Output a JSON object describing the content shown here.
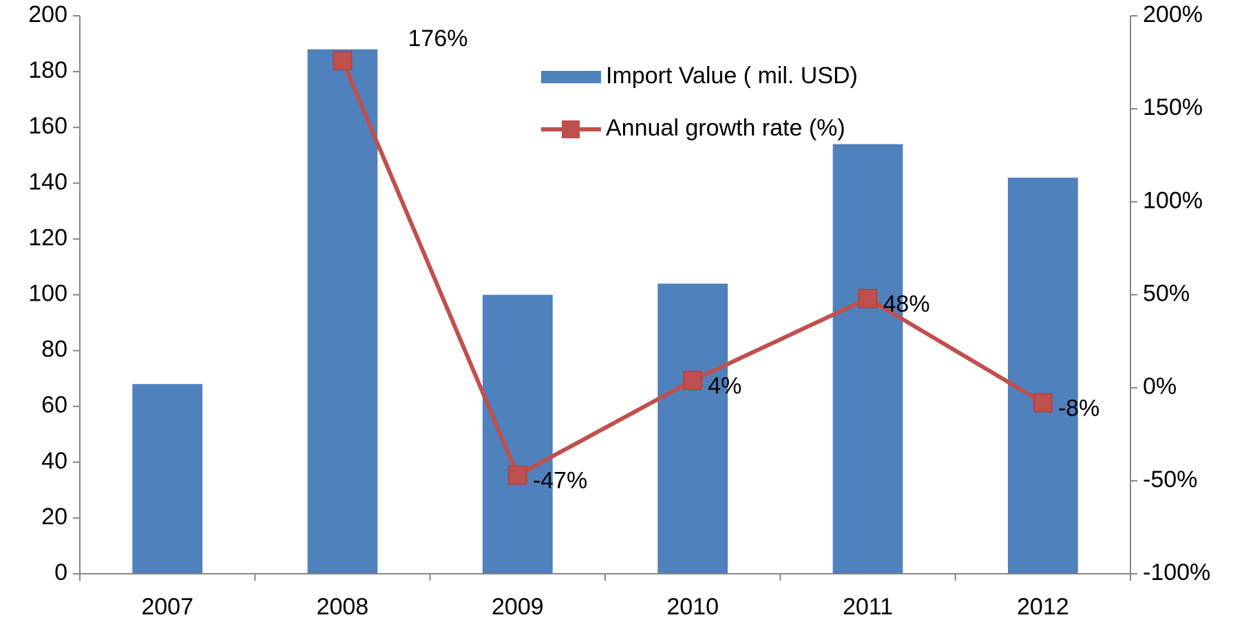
{
  "chart_data": {
    "type": "bar_line",
    "categories": [
      "2007",
      "2008",
      "2009",
      "2010",
      "2011",
      "2012"
    ],
    "series": [
      {
        "name": "Import Value ( mil. USD)",
        "color": "#4f81bd",
        "type": "bar",
        "values": [
          68,
          188,
          100,
          104,
          154,
          142
        ]
      },
      {
        "name": "Annual growth rate (%)",
        "color": "#c0504d",
        "type": "line",
        "axis": "y2",
        "values": [
          null,
          176,
          -47,
          4,
          48,
          -8
        ],
        "value_labels": [
          null,
          "176%",
          "-47%",
          "4%",
          "48%",
          "-8%"
        ]
      }
    ],
    "ylim": [
      0,
      200
    ],
    "yticks": [
      0,
      20,
      40,
      60,
      80,
      100,
      120,
      140,
      160,
      180,
      200
    ],
    "y2lim": [
      -100,
      200
    ],
    "y2ticks": [
      {
        "value": -100,
        "label": "-100%"
      },
      {
        "value": -50,
        "label": "-50%"
      },
      {
        "value": 0,
        "label": "0%"
      },
      {
        "value": 50,
        "label": "50%"
      },
      {
        "value": 100,
        "label": "100%"
      },
      {
        "value": 150,
        "label": "150%"
      },
      {
        "value": 200,
        "label": "200%"
      }
    ],
    "grid": false,
    "legend": "top"
  }
}
